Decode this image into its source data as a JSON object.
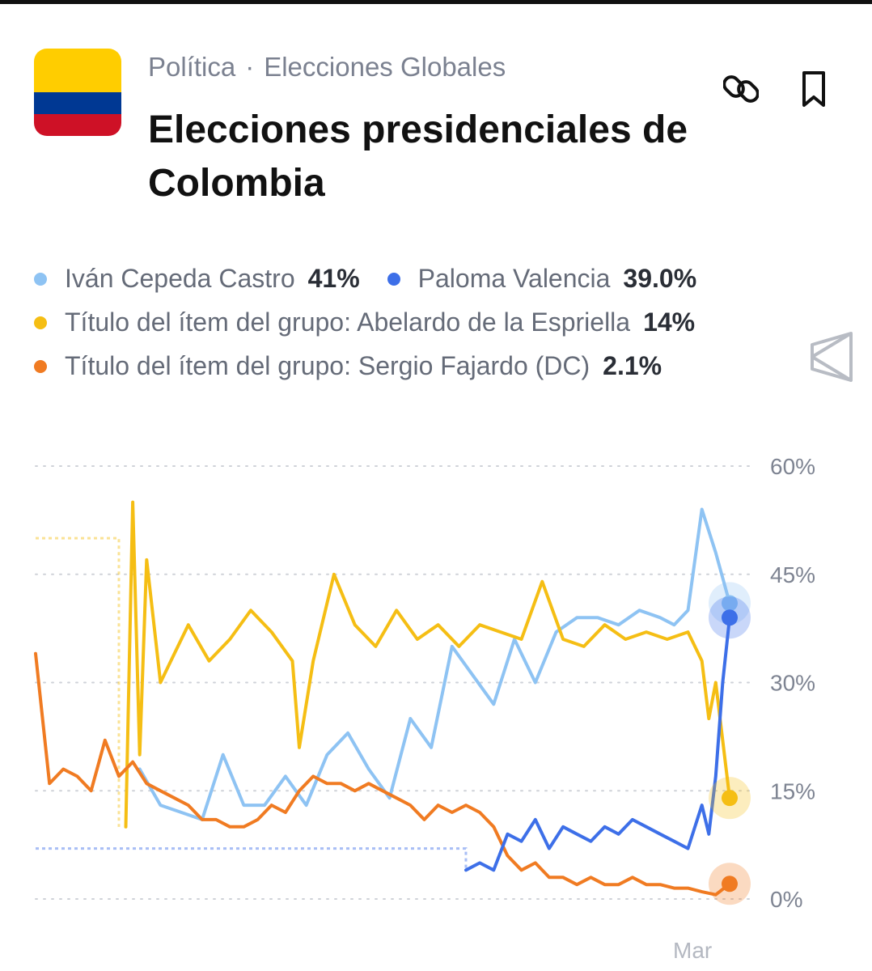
{
  "header": {
    "category": "Política",
    "separator": "·",
    "subcategory": "Elecciones Globales",
    "title": "Elecciones presidenciales de Colombia"
  },
  "icons": {
    "share": "link-icon",
    "save": "bookmark-icon",
    "watermark": "polymarket-logo-icon"
  },
  "flag_colors": [
    "#FFCD00",
    "#003893",
    "#CE1126"
  ],
  "legend": [
    {
      "name": "Iván Cepeda Castro",
      "value": "41%",
      "color": "#8EC3F3"
    },
    {
      "name": "Paloma Valencia",
      "value": "39.0%",
      "color": "#3D6FE8"
    },
    {
      "name": "Título del ítem del grupo: Abelardo de la Espriella",
      "value": "14%",
      "color": "#F5BE14"
    },
    {
      "name": "Título del ítem del grupo: Sergio Fajardo (DC)",
      "value": "2.1%",
      "color": "#F07B22"
    }
  ],
  "chart_data": {
    "type": "line",
    "ylim": [
      0,
      60
    ],
    "yticks": [
      "60%",
      "45%",
      "30%",
      "15%",
      "0%"
    ],
    "ytick_values": [
      60,
      45,
      30,
      15,
      0
    ],
    "xticks": [
      "Mar"
    ],
    "grid": true,
    "series": [
      {
        "name": "Iván Cepeda Castro",
        "color": "#8EC3F3",
        "x": [
          0,
          0.03,
          0.06,
          0.09,
          0.12,
          0.15,
          0.18,
          0.21,
          0.24,
          0.27,
          0.3,
          0.33,
          0.36,
          0.39,
          0.42,
          0.45,
          0.48,
          0.51,
          0.54,
          0.57,
          0.6,
          0.63,
          0.66,
          0.69,
          0.72,
          0.75,
          0.78,
          0.81,
          0.84,
          0.87,
          0.9,
          0.92,
          0.94,
          0.96,
          0.98,
          1.0
        ],
        "values": [
          null,
          null,
          null,
          null,
          null,
          18,
          13,
          12,
          11,
          20,
          13,
          13,
          17,
          13,
          20,
          23,
          18,
          14,
          25,
          21,
          35,
          31,
          27,
          36,
          30,
          37,
          39,
          39,
          38,
          40,
          39,
          38,
          40,
          54,
          48,
          41
        ]
      },
      {
        "name": "Paloma Valencia",
        "color": "#3D6FE8",
        "x": [
          0.62,
          0.64,
          0.66,
          0.68,
          0.7,
          0.72,
          0.74,
          0.76,
          0.78,
          0.8,
          0.82,
          0.84,
          0.86,
          0.88,
          0.9,
          0.92,
          0.94,
          0.95,
          0.96,
          0.97,
          0.98,
          0.99,
          1.0
        ],
        "values": [
          4,
          5,
          4,
          9,
          8,
          11,
          7,
          10,
          9,
          8,
          10,
          9,
          11,
          10,
          9,
          8,
          7,
          10,
          13,
          9,
          17,
          30,
          39
        ]
      },
      {
        "name": "Título del ítem del grupo: Abelardo de la Espriella",
        "color": "#F5BE14",
        "x": [
          0.13,
          0.14,
          0.15,
          0.16,
          0.18,
          0.2,
          0.22,
          0.25,
          0.28,
          0.31,
          0.34,
          0.37,
          0.38,
          0.4,
          0.43,
          0.46,
          0.49,
          0.52,
          0.55,
          0.58,
          0.61,
          0.64,
          0.67,
          0.7,
          0.73,
          0.76,
          0.79,
          0.82,
          0.85,
          0.88,
          0.91,
          0.94,
          0.96,
          0.97,
          0.98,
          1.0
        ],
        "values": [
          10,
          55,
          20,
          47,
          30,
          34,
          38,
          33,
          36,
          40,
          37,
          33,
          21,
          33,
          45,
          38,
          35,
          40,
          36,
          38,
          35,
          38,
          37,
          36,
          44,
          36,
          35,
          38,
          36,
          37,
          36,
          37,
          33,
          25,
          30,
          14
        ]
      },
      {
        "name": "Título del ítem del grupo: Sergio Fajardo (DC)",
        "color": "#F07B22",
        "x": [
          0,
          0.02,
          0.04,
          0.06,
          0.08,
          0.1,
          0.12,
          0.14,
          0.16,
          0.18,
          0.2,
          0.22,
          0.24,
          0.26,
          0.28,
          0.3,
          0.32,
          0.34,
          0.36,
          0.38,
          0.4,
          0.42,
          0.44,
          0.46,
          0.48,
          0.5,
          0.52,
          0.54,
          0.56,
          0.58,
          0.6,
          0.62,
          0.64,
          0.66,
          0.68,
          0.7,
          0.72,
          0.74,
          0.76,
          0.78,
          0.8,
          0.82,
          0.84,
          0.86,
          0.88,
          0.9,
          0.92,
          0.94,
          0.96,
          0.98,
          1.0
        ],
        "values": [
          34,
          16,
          18,
          17,
          15,
          22,
          17,
          19,
          16,
          15,
          14,
          13,
          11,
          11,
          10,
          10,
          11,
          13,
          12,
          15,
          17,
          16,
          16,
          15,
          16,
          15,
          14,
          13,
          11,
          13,
          12,
          13,
          12,
          10,
          6,
          4,
          5,
          3,
          3,
          2,
          3,
          2,
          2,
          3,
          2,
          2,
          1.5,
          1.5,
          1,
          0.6,
          2.1
        ]
      }
    ],
    "dashed_reference": [
      {
        "series": "Título del ítem del grupo: Abelardo de la Espriella",
        "value": 50
      },
      {
        "series": "Paloma Valencia",
        "value": 7
      }
    ]
  }
}
